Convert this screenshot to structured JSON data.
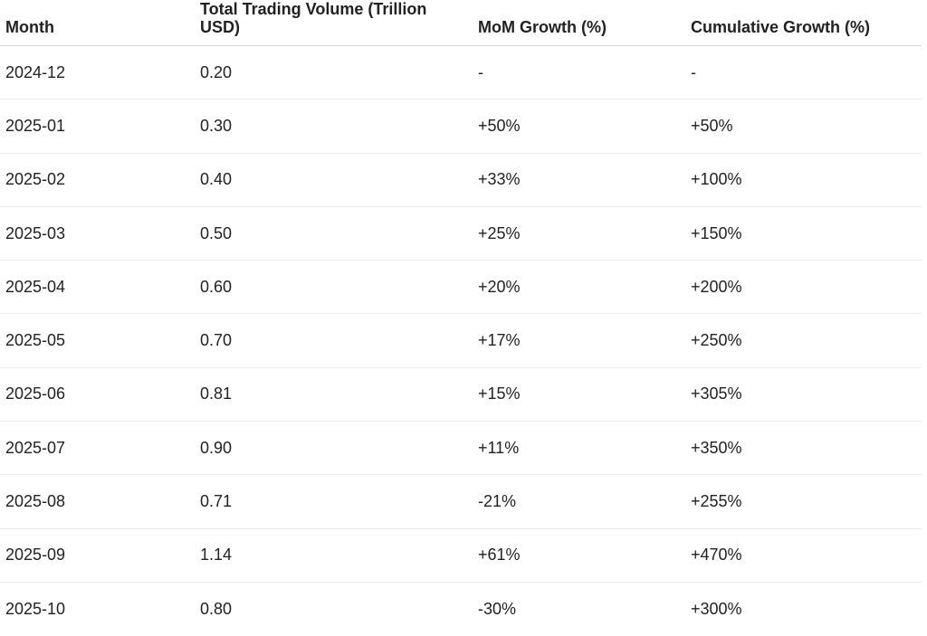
{
  "table": {
    "headers": {
      "month": "Month",
      "volume": "Total Trading Volume (Trillion USD)",
      "mom": "MoM Growth (%)",
      "cumulative": "Cumulative Growth (%)"
    },
    "rows": [
      {
        "month": "2024-12",
        "volume": "0.20",
        "mom": "-",
        "cumulative": "-"
      },
      {
        "month": "2025-01",
        "volume": "0.30",
        "mom": "+50%",
        "cumulative": "+50%"
      },
      {
        "month": "2025-02",
        "volume": "0.40",
        "mom": "+33%",
        "cumulative": "+100%"
      },
      {
        "month": "2025-03",
        "volume": "0.50",
        "mom": "+25%",
        "cumulative": "+150%"
      },
      {
        "month": "2025-04",
        "volume": "0.60",
        "mom": "+20%",
        "cumulative": "+200%"
      },
      {
        "month": "2025-05",
        "volume": "0.70",
        "mom": "+17%",
        "cumulative": "+250%"
      },
      {
        "month": "2025-06",
        "volume": "0.81",
        "mom": "+15%",
        "cumulative": "+305%"
      },
      {
        "month": "2025-07",
        "volume": "0.90",
        "mom": "+11%",
        "cumulative": "+350%"
      },
      {
        "month": "2025-08",
        "volume": "0.71",
        "mom": "-21%",
        "cumulative": "+255%"
      },
      {
        "month": "2025-09",
        "volume": "1.14",
        "mom": "+61%",
        "cumulative": "+470%"
      },
      {
        "month": "2025-10",
        "volume": "0.80",
        "mom": "-30%",
        "cumulative": "+300%"
      }
    ]
  }
}
